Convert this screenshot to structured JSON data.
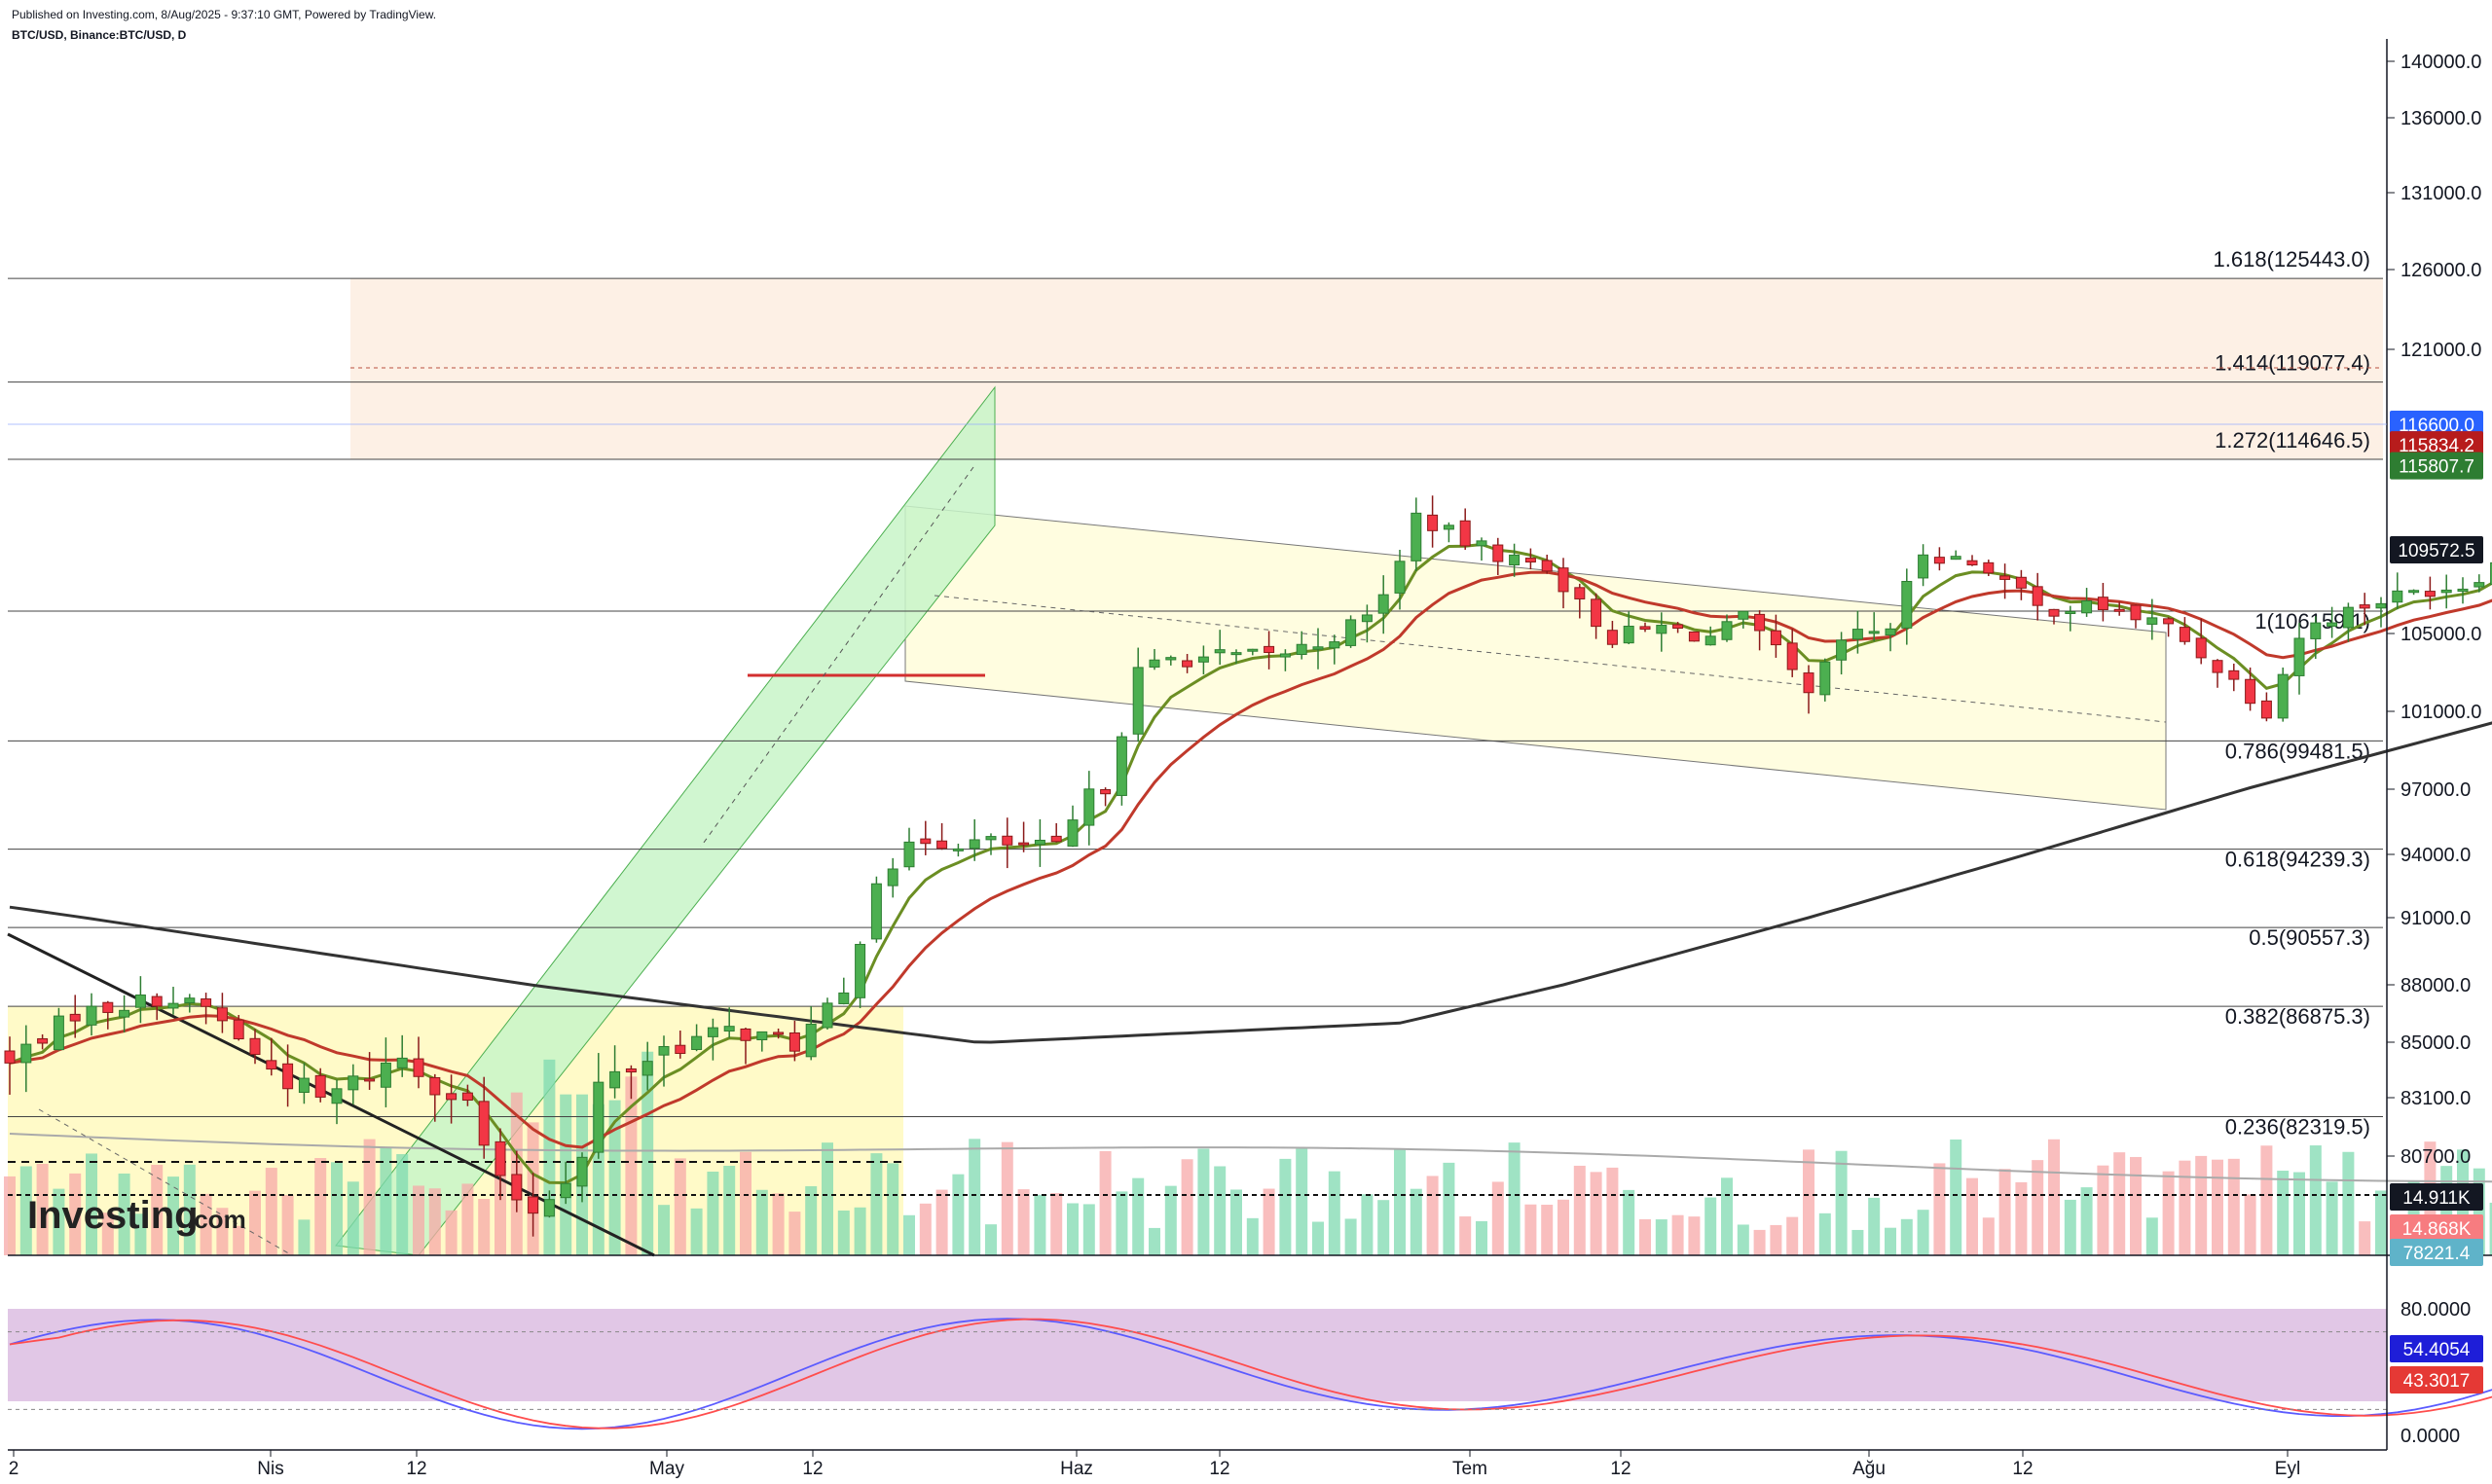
{
  "header": {
    "published": "Published on Investing.com, 8/Aug/2025 - 9:37:10 GMT, Powered by TradingView.",
    "symbol": "BTC/USD, Binance:BTC/USD, D"
  },
  "logo": {
    "text": "Investing",
    "suffix": ".com"
  },
  "colors": {
    "up": "#26a69a",
    "down": "#ef5350",
    "up_fill": "#4caf50",
    "down_fill": "#f23645",
    "ema_fast": "#6b8e23",
    "ema_mid": "#c0392b",
    "ma_slow": "#333333",
    "stoch_k": "#5b5bff",
    "stoch_d": "#ff4d4d"
  },
  "chart_data": {
    "type": "candlestick",
    "symbol": "BTC/USD",
    "timeframe": "D",
    "price_axis": {
      "ticks": [
        "140000.0",
        "136000.0",
        "131000.0",
        "126000.0",
        "121000.0",
        "105000.0",
        "101000.0",
        "97000.0",
        "94000.0",
        "91000.0",
        "88000.0",
        "85000.0",
        "83100.0",
        "80700.0"
      ],
      "tick_values": [
        140000,
        136000,
        131000,
        126000,
        121000,
        105000,
        101000,
        97000,
        94000,
        91000,
        88000,
        85000,
        83100,
        80700
      ]
    },
    "x_axis": {
      "labels": [
        "2",
        "Nis",
        "12",
        "May",
        "12",
        "Haz",
        "12",
        "Tem",
        "12",
        "Ağu",
        "12",
        "Eyl"
      ]
    },
    "fib_levels": [
      {
        "label": "1.618(125443.0)",
        "value": 125443.0
      },
      {
        "label": "1.414(119077.4)",
        "value": 119077.4
      },
      {
        "label": "1.272(114646.5)",
        "value": 114646.5
      },
      {
        "label": "1(106159.1)",
        "value": 106159.1
      },
      {
        "label": "0.786(99481.5)",
        "value": 99481.5
      },
      {
        "label": "0.618(94239.3)",
        "value": 94239.3
      },
      {
        "label": "0.5(90557.3)",
        "value": 90557.3
      },
      {
        "label": "0.382(86875.3)",
        "value": 86875.3
      },
      {
        "label": "0.236(82319.5)",
        "value": 82319.5
      }
    ],
    "price_tags": [
      {
        "label": "116600.0",
        "value": 116600.0,
        "color": "#2962ff"
      },
      {
        "label": "115834.2",
        "value": 115834.2,
        "color": "#b71c1c"
      },
      {
        "label": "115807.7",
        "value": 115807.7,
        "color": "#2e7d32"
      },
      {
        "label": "109572.5",
        "value": 109572.5,
        "color": "#131722"
      }
    ],
    "volume_tags": [
      {
        "label": "14.911K",
        "color": "#131722"
      },
      {
        "label": "14.868K",
        "color": "#f77c80"
      },
      {
        "label": "78221.4",
        "color": "#5fb3c9"
      }
    ],
    "stochastic": {
      "ticks": [
        "80.0000",
        "0.0000"
      ],
      "tick_values": [
        80,
        0
      ],
      "band": [
        20,
        80
      ],
      "k_value": "54.4054",
      "d_value": "43.3017"
    }
  }
}
